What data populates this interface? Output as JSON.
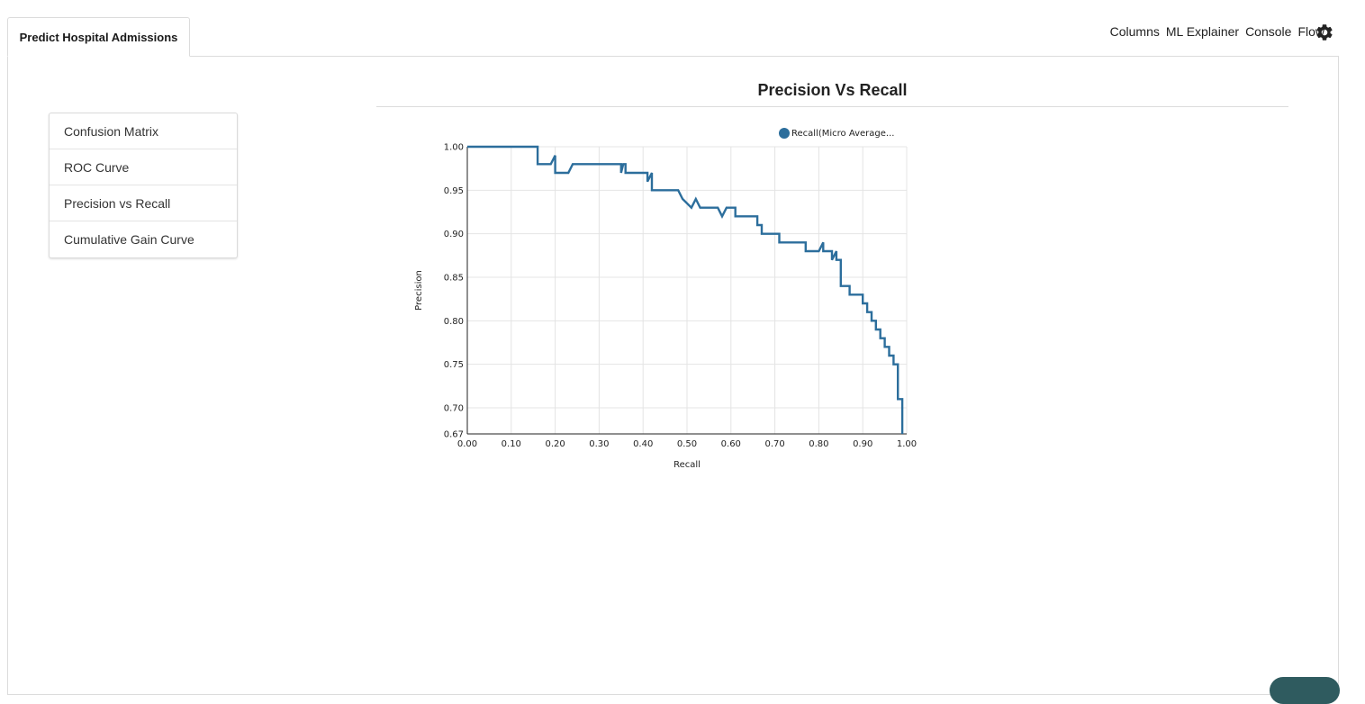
{
  "tab": {
    "label": "Predict Hospital Admissions"
  },
  "nav": {
    "columns": "Columns",
    "ml_explainer": "ML Explainer",
    "console": "Console",
    "flow": "Flow"
  },
  "menu": {
    "items": [
      {
        "label": "Confusion Matrix"
      },
      {
        "label": "ROC Curve"
      },
      {
        "label": "Precision vs Recall"
      },
      {
        "label": "Cumulative Gain Curve"
      }
    ]
  },
  "chart_data": {
    "type": "line",
    "title": "Precision Vs Recall",
    "xlabel": "Recall",
    "ylabel": "Precision",
    "xlim": [
      0,
      1
    ],
    "ylim": [
      0.67,
      1.0
    ],
    "xticks": [
      "0.00",
      "0.10",
      "0.20",
      "0.30",
      "0.40",
      "0.50",
      "0.60",
      "0.70",
      "0.80",
      "0.90",
      "1.00"
    ],
    "yticks": [
      "0.67",
      "0.70",
      "0.75",
      "0.80",
      "0.85",
      "0.90",
      "0.95",
      "1.00"
    ],
    "grid": true,
    "legend": "top-right",
    "colors": {
      "series": "#2c6e9c",
      "grid": "#e4e4e4",
      "axis": "#222222"
    },
    "series": [
      {
        "name": "Recall(Micro Average...",
        "points": [
          [
            0.0,
            1.0
          ],
          [
            0.16,
            1.0
          ],
          [
            0.16,
            0.98
          ],
          [
            0.19,
            0.98
          ],
          [
            0.2,
            0.99
          ],
          [
            0.2,
            0.97
          ],
          [
            0.23,
            0.97
          ],
          [
            0.24,
            0.98
          ],
          [
            0.35,
            0.98
          ],
          [
            0.35,
            0.97
          ],
          [
            0.355,
            0.98
          ],
          [
            0.36,
            0.98
          ],
          [
            0.36,
            0.97
          ],
          [
            0.41,
            0.97
          ],
          [
            0.41,
            0.96
          ],
          [
            0.42,
            0.97
          ],
          [
            0.42,
            0.95
          ],
          [
            0.48,
            0.95
          ],
          [
            0.49,
            0.94
          ],
          [
            0.51,
            0.93
          ],
          [
            0.52,
            0.94
          ],
          [
            0.53,
            0.93
          ],
          [
            0.57,
            0.93
          ],
          [
            0.58,
            0.92
          ],
          [
            0.59,
            0.93
          ],
          [
            0.61,
            0.93
          ],
          [
            0.61,
            0.92
          ],
          [
            0.66,
            0.92
          ],
          [
            0.66,
            0.91
          ],
          [
            0.67,
            0.91
          ],
          [
            0.67,
            0.9
          ],
          [
            0.71,
            0.9
          ],
          [
            0.71,
            0.89
          ],
          [
            0.77,
            0.89
          ],
          [
            0.77,
            0.88
          ],
          [
            0.8,
            0.88
          ],
          [
            0.81,
            0.89
          ],
          [
            0.81,
            0.88
          ],
          [
            0.83,
            0.88
          ],
          [
            0.83,
            0.87
          ],
          [
            0.84,
            0.88
          ],
          [
            0.84,
            0.87
          ],
          [
            0.85,
            0.87
          ],
          [
            0.85,
            0.84
          ],
          [
            0.87,
            0.84
          ],
          [
            0.87,
            0.83
          ],
          [
            0.9,
            0.83
          ],
          [
            0.9,
            0.82
          ],
          [
            0.91,
            0.82
          ],
          [
            0.91,
            0.81
          ],
          [
            0.92,
            0.81
          ],
          [
            0.92,
            0.8
          ],
          [
            0.93,
            0.8
          ],
          [
            0.93,
            0.79
          ],
          [
            0.94,
            0.79
          ],
          [
            0.94,
            0.78
          ],
          [
            0.95,
            0.78
          ],
          [
            0.95,
            0.77
          ],
          [
            0.96,
            0.77
          ],
          [
            0.96,
            0.76
          ],
          [
            0.97,
            0.76
          ],
          [
            0.97,
            0.75
          ],
          [
            0.98,
            0.75
          ],
          [
            0.98,
            0.71
          ],
          [
            0.99,
            0.71
          ],
          [
            0.99,
            0.67
          ]
        ]
      }
    ]
  }
}
